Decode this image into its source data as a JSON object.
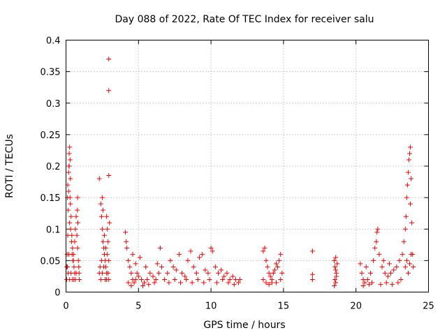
{
  "chart_data": {
    "type": "scatter",
    "title": "Day 088 of 2022, Rate Of TEC Index for receiver salu",
    "xlabel": "GPS time / hours",
    "ylabel": "ROTI / TECUs",
    "xlim": [
      0,
      25
    ],
    "ylim": [
      0,
      0.4
    ],
    "xticks": [
      0,
      5,
      10,
      15,
      20,
      25
    ],
    "xtick_labels": [
      "0",
      "5",
      "10",
      "15",
      "20",
      "25"
    ],
    "yticks": [
      0,
      0.05,
      0.1,
      0.15,
      0.2,
      0.25,
      0.3,
      0.35,
      0.4
    ],
    "ytick_labels": [
      "0",
      "0.05",
      "0.1",
      "0.15",
      "0.2",
      "0.25",
      "0.3",
      "0.35",
      "0.4"
    ],
    "grid": true,
    "marker": "+",
    "color": "#ff0000",
    "series": [
      {
        "name": "ROTI",
        "points": [
          [
            0.05,
            0.02
          ],
          [
            0.1,
            0.04
          ],
          [
            0.12,
            0.09
          ],
          [
            0.15,
            0.13
          ],
          [
            0.18,
            0.16
          ],
          [
            0.2,
            0.2
          ],
          [
            0.22,
            0.22
          ],
          [
            0.25,
            0.23
          ],
          [
            0.28,
            0.21
          ],
          [
            0.3,
            0.18
          ],
          [
            0.15,
            0.03
          ],
          [
            0.2,
            0.06
          ],
          [
            0.25,
            0.11
          ],
          [
            0.3,
            0.14
          ],
          [
            0.35,
            0.12
          ],
          [
            0.4,
            0.09
          ],
          [
            0.45,
            0.07
          ],
          [
            0.5,
            0.05
          ],
          [
            0.55,
            0.04
          ],
          [
            0.6,
            0.03
          ],
          [
            0.1,
            0.15
          ],
          [
            0.12,
            0.17
          ],
          [
            0.18,
            0.19
          ],
          [
            0.22,
            0.2
          ],
          [
            0.28,
            0.15
          ],
          [
            0.32,
            0.1
          ],
          [
            0.38,
            0.08
          ],
          [
            0.42,
            0.06
          ],
          [
            0.48,
            0.05
          ],
          [
            0.52,
            0.06
          ],
          [
            0.6,
            0.08
          ],
          [
            0.65,
            0.1
          ],
          [
            0.7,
            0.12
          ],
          [
            0.75,
            0.09
          ],
          [
            0.8,
            0.07
          ],
          [
            0.85,
            0.05
          ],
          [
            0.88,
            0.04
          ],
          [
            0.9,
            0.03
          ],
          [
            0.92,
            0.02
          ],
          [
            0.8,
            0.15
          ],
          [
            0.78,
            0.13
          ],
          [
            0.82,
            0.11
          ],
          [
            0.7,
            0.03
          ],
          [
            0.65,
            0.02
          ],
          [
            0.55,
            0.02
          ],
          [
            0.45,
            0.02
          ],
          [
            0.35,
            0.03
          ],
          [
            0.25,
            0.02
          ],
          [
            0.08,
            0.06
          ],
          [
            0.05,
            0.04
          ],
          [
            2.3,
            0.18
          ],
          [
            2.4,
            0.14
          ],
          [
            2.45,
            0.12
          ],
          [
            2.5,
            0.1
          ],
          [
            2.55,
            0.08
          ],
          [
            2.6,
            0.07
          ],
          [
            2.65,
            0.06
          ],
          [
            2.7,
            0.05
          ],
          [
            2.75,
            0.04
          ],
          [
            2.8,
            0.03
          ],
          [
            2.4,
            0.02
          ],
          [
            2.5,
            0.03
          ],
          [
            2.6,
            0.04
          ],
          [
            2.7,
            0.02
          ],
          [
            2.8,
            0.02
          ],
          [
            2.9,
            0.03
          ],
          [
            2.95,
            0.05
          ],
          [
            2.9,
            0.08
          ],
          [
            2.85,
            0.1
          ],
          [
            2.8,
            0.12
          ],
          [
            2.5,
            0.15
          ],
          [
            2.55,
            0.13
          ],
          [
            2.65,
            0.09
          ],
          [
            2.75,
            0.07
          ],
          [
            2.85,
            0.06
          ],
          [
            2.95,
            0.02
          ],
          [
            3.0,
            0.11
          ],
          [
            2.45,
            0.05
          ],
          [
            2.35,
            0.04
          ],
          [
            2.3,
            0.03
          ],
          [
            2.95,
            0.37
          ],
          [
            2.95,
            0.32
          ],
          [
            2.95,
            0.185
          ],
          [
            4.1,
            0.095
          ],
          [
            4.15,
            0.08
          ],
          [
            4.2,
            0.07
          ],
          [
            4.3,
            0.05
          ],
          [
            4.4,
            0.04
          ],
          [
            4.5,
            0.03
          ],
          [
            4.6,
            0.02
          ],
          [
            4.7,
            0.015
          ],
          [
            4.8,
            0.02
          ],
          [
            4.9,
            0.03
          ],
          [
            5.0,
            0.025
          ],
          [
            5.2,
            0.02
          ],
          [
            5.4,
            0.015
          ],
          [
            5.6,
            0.02
          ],
          [
            5.8,
            0.03
          ],
          [
            6.0,
            0.025
          ],
          [
            6.2,
            0.02
          ],
          [
            6.4,
            0.03
          ],
          [
            6.5,
            0.07
          ],
          [
            6.6,
            0.04
          ],
          [
            4.6,
            0.06
          ],
          [
            4.8,
            0.045
          ],
          [
            5.1,
            0.055
          ],
          [
            4.3,
            0.015
          ],
          [
            4.5,
            0.01
          ],
          [
            5.3,
            0.01
          ],
          [
            5.7,
            0.012
          ],
          [
            6.1,
            0.015
          ],
          [
            6.8,
            0.02
          ],
          [
            7.0,
            0.03
          ],
          [
            7.2,
            0.05
          ],
          [
            7.4,
            0.04
          ],
          [
            7.6,
            0.035
          ],
          [
            7.8,
            0.06
          ],
          [
            8.0,
            0.03
          ],
          [
            8.2,
            0.025
          ],
          [
            8.4,
            0.05
          ],
          [
            8.6,
            0.065
          ],
          [
            8.8,
            0.04
          ],
          [
            9.0,
            0.03
          ],
          [
            9.2,
            0.055
          ],
          [
            9.4,
            0.06
          ],
          [
            9.6,
            0.035
          ],
          [
            9.8,
            0.03
          ],
          [
            10.0,
            0.07
          ],
          [
            10.1,
            0.065
          ],
          [
            10.3,
            0.04
          ],
          [
            10.5,
            0.03
          ],
          [
            10.7,
            0.035
          ],
          [
            10.9,
            0.025
          ],
          [
            11.1,
            0.03
          ],
          [
            11.3,
            0.02
          ],
          [
            11.5,
            0.025
          ],
          [
            11.7,
            0.02
          ],
          [
            11.9,
            0.015
          ],
          [
            12.0,
            0.02
          ],
          [
            7.1,
            0.015
          ],
          [
            7.5,
            0.02
          ],
          [
            7.9,
            0.015
          ],
          [
            8.3,
            0.02
          ],
          [
            8.7,
            0.015
          ],
          [
            9.1,
            0.02
          ],
          [
            9.5,
            0.015
          ],
          [
            9.9,
            0.02
          ],
          [
            10.4,
            0.015
          ],
          [
            10.8,
            0.02
          ],
          [
            11.2,
            0.015
          ],
          [
            11.6,
            0.012
          ],
          [
            5.5,
            0.04
          ],
          [
            6.3,
            0.045
          ],
          [
            13.6,
            0.065
          ],
          [
            13.7,
            0.07
          ],
          [
            13.8,
            0.05
          ],
          [
            13.9,
            0.04
          ],
          [
            14.0,
            0.03
          ],
          [
            14.1,
            0.025
          ],
          [
            14.2,
            0.02
          ],
          [
            14.3,
            0.03
          ],
          [
            14.4,
            0.035
          ],
          [
            14.5,
            0.045
          ],
          [
            14.6,
            0.04
          ],
          [
            14.7,
            0.05
          ],
          [
            14.8,
            0.06
          ],
          [
            14.9,
            0.03
          ],
          [
            13.6,
            0.02
          ],
          [
            13.8,
            0.015
          ],
          [
            14.0,
            0.012
          ],
          [
            14.2,
            0.015
          ],
          [
            14.5,
            0.015
          ],
          [
            14.8,
            0.02
          ],
          [
            17.0,
            0.065
          ],
          [
            17.0,
            0.028
          ],
          [
            17.0,
            0.02
          ],
          [
            18.5,
            0.05
          ],
          [
            18.55,
            0.04
          ],
          [
            18.6,
            0.035
          ],
          [
            18.65,
            0.03
          ],
          [
            18.55,
            0.02
          ],
          [
            18.6,
            0.015
          ],
          [
            18.5,
            0.01
          ],
          [
            18.65,
            0.025
          ],
          [
            18.7,
            0.045
          ],
          [
            18.6,
            0.055
          ],
          [
            20.3,
            0.045
          ],
          [
            20.4,
            0.03
          ],
          [
            20.5,
            0.02
          ],
          [
            20.6,
            0.015
          ],
          [
            20.8,
            0.02
          ],
          [
            21.0,
            0.03
          ],
          [
            21.2,
            0.05
          ],
          [
            21.3,
            0.07
          ],
          [
            21.4,
            0.08
          ],
          [
            21.5,
            0.1
          ],
          [
            21.6,
            0.06
          ],
          [
            21.8,
            0.04
          ],
          [
            22.0,
            0.03
          ],
          [
            22.2,
            0.025
          ],
          [
            22.4,
            0.03
          ],
          [
            22.6,
            0.035
          ],
          [
            22.8,
            0.04
          ],
          [
            23.0,
            0.05
          ],
          [
            23.2,
            0.06
          ],
          [
            23.3,
            0.08
          ],
          [
            23.4,
            0.1
          ],
          [
            23.45,
            0.12
          ],
          [
            23.5,
            0.15
          ],
          [
            23.55,
            0.17
          ],
          [
            23.6,
            0.19
          ],
          [
            23.65,
            0.21
          ],
          [
            23.7,
            0.22
          ],
          [
            23.75,
            0.23
          ],
          [
            23.8,
            0.18
          ],
          [
            23.85,
            0.11
          ],
          [
            23.9,
            0.06
          ],
          [
            23.95,
            0.04
          ],
          [
            20.5,
            0.01
          ],
          [
            20.9,
            0.012
          ],
          [
            21.1,
            0.015
          ],
          [
            21.7,
            0.012
          ],
          [
            22.1,
            0.015
          ],
          [
            22.5,
            0.012
          ],
          [
            22.9,
            0.015
          ],
          [
            23.1,
            0.02
          ],
          [
            23.6,
            0.03
          ],
          [
            23.7,
            0.045
          ],
          [
            23.8,
            0.06
          ],
          [
            23.5,
            0.05
          ],
          [
            23.4,
            0.04
          ],
          [
            21.9,
            0.05
          ],
          [
            22.3,
            0.045
          ],
          [
            20.7,
            0.04
          ],
          [
            21.45,
            0.095
          ],
          [
            23.75,
            0.14
          ]
        ]
      }
    ]
  }
}
